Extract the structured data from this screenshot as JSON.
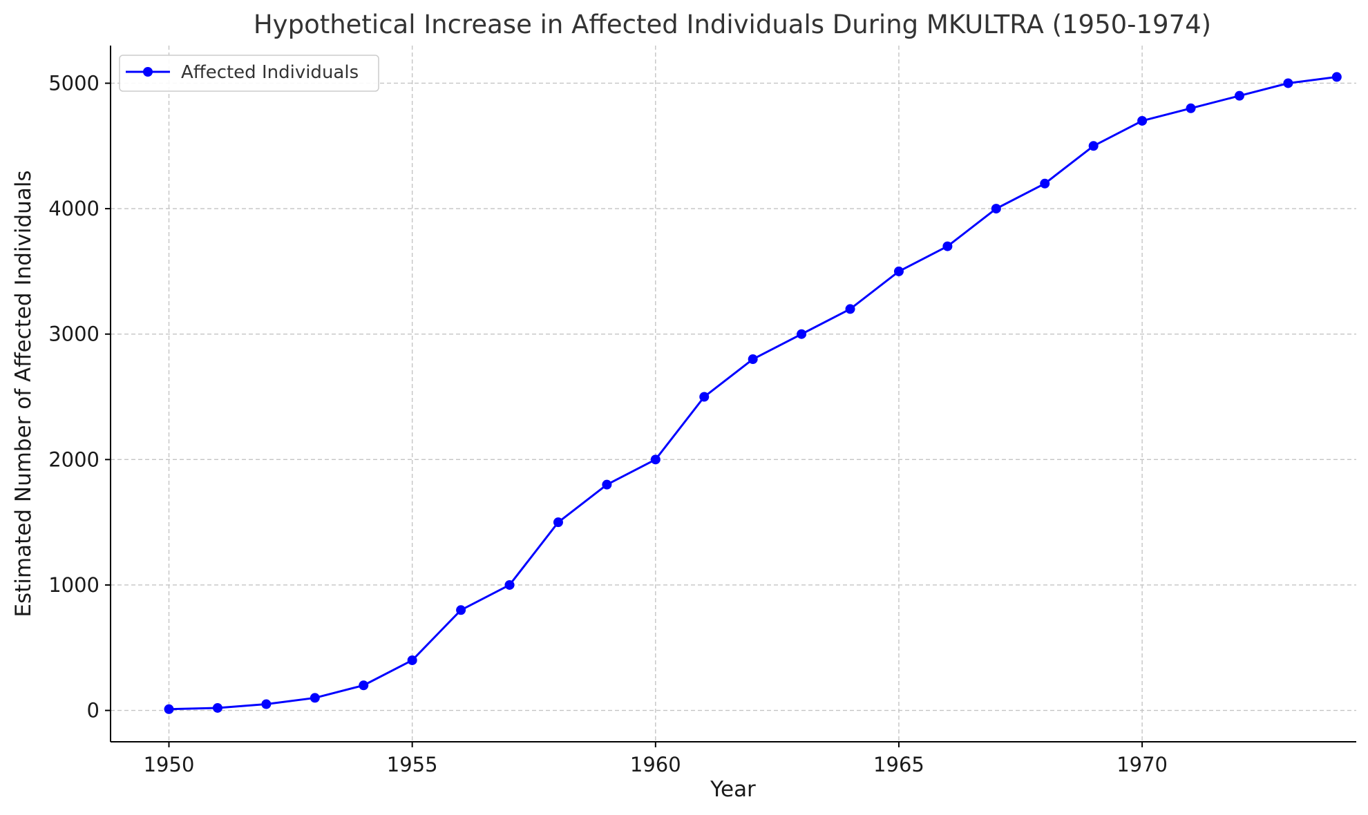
{
  "chart_data": {
    "type": "line",
    "title": "Hypothetical Increase in Affected Individuals During MKULTRA (1950-1974)",
    "xlabel": "Year",
    "ylabel": "Estimated Number of Affected Individuals",
    "xlim": [
      1948.8,
      1974.4
    ],
    "ylim": [
      -250,
      5300
    ],
    "x_ticks": [
      1950,
      1955,
      1960,
      1965,
      1970
    ],
    "y_ticks": [
      0,
      1000,
      2000,
      3000,
      4000,
      5000
    ],
    "grid": true,
    "legend_position": "top-left",
    "x": [
      1950,
      1951,
      1952,
      1953,
      1954,
      1955,
      1956,
      1957,
      1958,
      1959,
      1960,
      1961,
      1962,
      1963,
      1964,
      1965,
      1966,
      1967,
      1968,
      1969,
      1970,
      1971,
      1972,
      1973,
      1974
    ],
    "series": [
      {
        "name": "Affected Individuals",
        "color": "#0000ff",
        "marker": "circle",
        "values": [
          10,
          20,
          50,
          100,
          200,
          400,
          800,
          1000,
          1500,
          1800,
          2000,
          2500,
          2800,
          3000,
          3200,
          3500,
          3700,
          4000,
          4200,
          4500,
          4700,
          4800,
          4900,
          5000,
          5050
        ]
      }
    ]
  }
}
